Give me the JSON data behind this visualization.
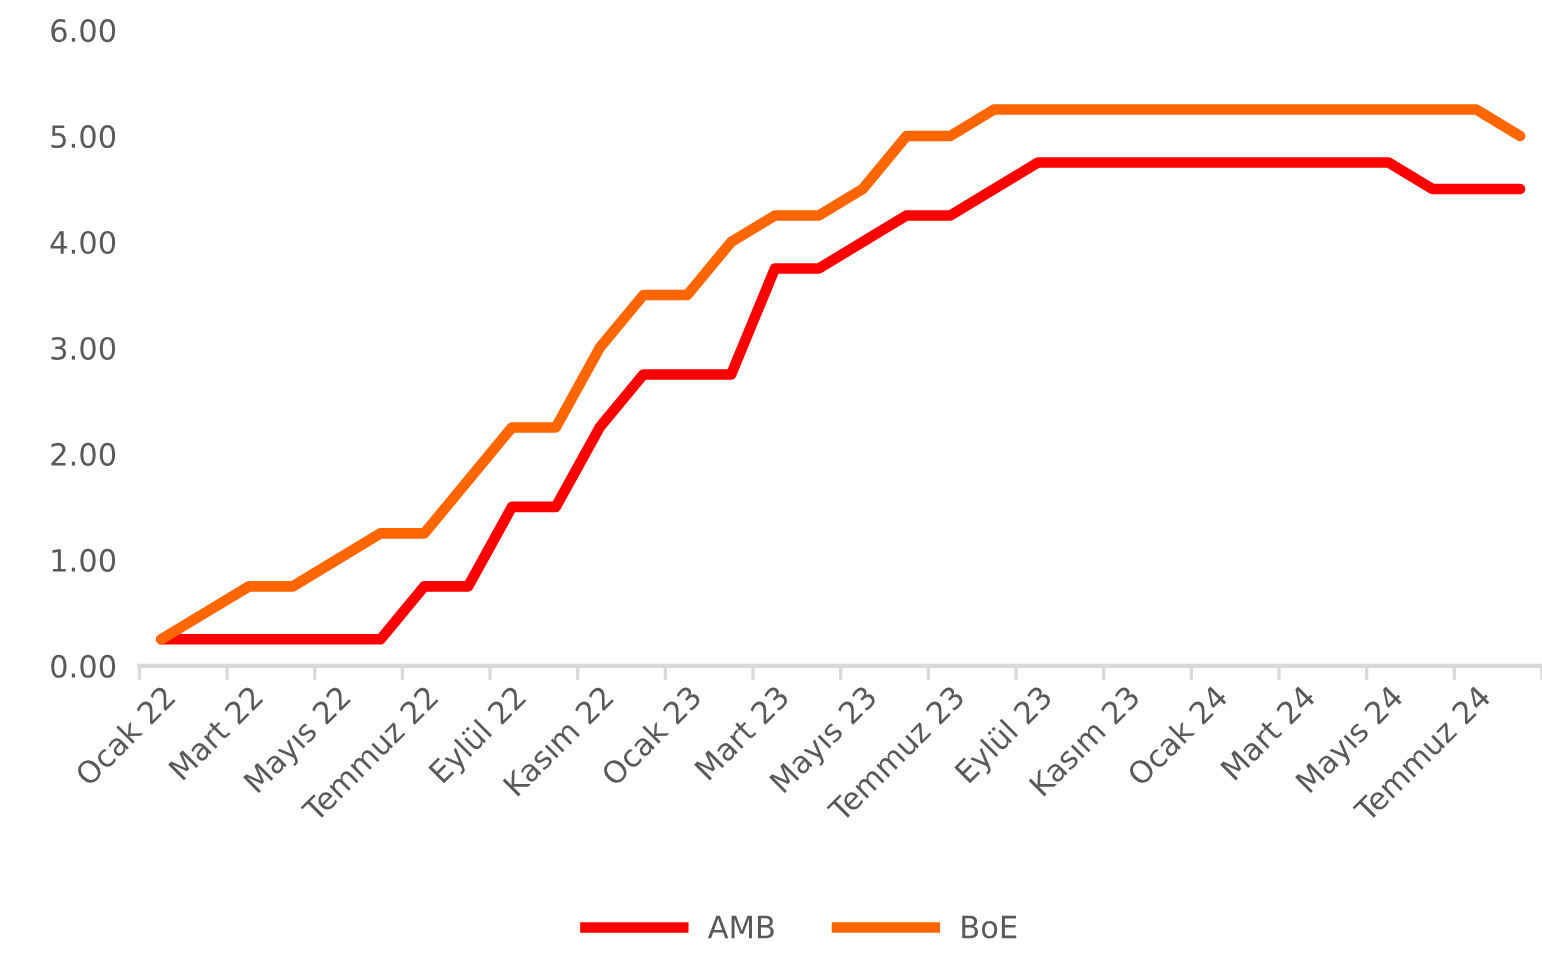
{
  "chart_data": {
    "type": "line",
    "categories": [
      "Ocak 22",
      null,
      "Mart 22",
      null,
      "Mayıs 22",
      null,
      "Temmuz 22",
      null,
      "Eylül 22",
      null,
      "Kasım 22",
      null,
      "Ocak 23",
      null,
      "Mart 23",
      null,
      "Mayıs 23",
      null,
      "Temmuz 23",
      null,
      "Eylül 23",
      null,
      "Kasım 23",
      null,
      "Ocak 24",
      null,
      "Mart 24",
      null,
      "Mayıs 24",
      null,
      "Temmuz 24",
      null
    ],
    "series": [
      {
        "name": "AMB",
        "color": "#ff0000",
        "values": [
          0.25,
          0.25,
          0.25,
          0.25,
          0.25,
          0.25,
          0.75,
          0.75,
          1.5,
          1.5,
          2.25,
          2.75,
          2.75,
          2.75,
          3.75,
          3.75,
          4.0,
          4.25,
          4.25,
          4.5,
          4.75,
          4.75,
          4.75,
          4.75,
          4.75,
          4.75,
          4.75,
          4.75,
          4.75,
          4.5,
          4.5,
          4.5
        ]
      },
      {
        "name": "BoE",
        "color": "#ff6600",
        "values": [
          0.25,
          0.5,
          0.75,
          0.75,
          1.0,
          1.25,
          1.25,
          1.75,
          2.25,
          2.25,
          3.0,
          3.5,
          3.5,
          4.0,
          4.25,
          4.25,
          4.5,
          5.0,
          5.0,
          5.25,
          5.25,
          5.25,
          5.25,
          5.25,
          5.25,
          5.25,
          5.25,
          5.25,
          5.25,
          5.25,
          5.25,
          5.0
        ]
      }
    ],
    "ylim": [
      0,
      6
    ],
    "yticks": [
      {
        "value": 0,
        "label": "0.00"
      },
      {
        "value": 1,
        "label": "1.00"
      },
      {
        "value": 2,
        "label": "2.00"
      },
      {
        "value": 3,
        "label": "3.00"
      },
      {
        "value": 4,
        "label": "4.00"
      },
      {
        "value": 5,
        "label": "5.00"
      },
      {
        "value": 6,
        "label": "6.00"
      }
    ],
    "grid": false,
    "legend": "bottom",
    "marker": "none",
    "line_style": "solid"
  }
}
